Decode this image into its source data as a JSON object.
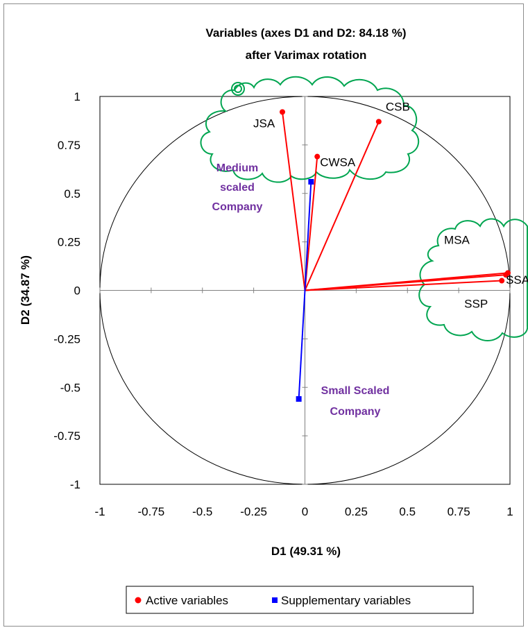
{
  "chart_data": {
    "type": "scatter",
    "title": "Variables (axes D1 and D2: 84.18 %)",
    "subtitle": "after Varimax rotation",
    "xlabel": "D1 (49.31 %)",
    "ylabel": "D2 (34.87 %)",
    "xlim": [
      -1,
      1
    ],
    "ylim": [
      -1,
      1
    ],
    "x_ticks": [
      "-1",
      "-0.75",
      "-0.5",
      "-0.25",
      "0",
      "0.25",
      "0.5",
      "0.75",
      "1"
    ],
    "y_ticks": [
      "1",
      "0.75",
      "0.5",
      "0.25",
      "0",
      "-0.25",
      "-0.5",
      "-0.75",
      "-1"
    ],
    "grid": false,
    "legend_position": "bottom",
    "series": [
      {
        "name": "Active variables",
        "color": "#ff0000",
        "marker": "circle",
        "points": [
          {
            "label": "JSA",
            "x": -0.11,
            "y": 0.92
          },
          {
            "label": "CWSA",
            "x": 0.06,
            "y": 0.69
          },
          {
            "label": "CSB",
            "x": 0.36,
            "y": 0.87
          },
          {
            "label": "MSA",
            "x": 0.99,
            "y": 0.09
          },
          {
            "label": "SSA",
            "x": 0.98,
            "y": 0.08
          },
          {
            "label": "SSP",
            "x": 0.96,
            "y": 0.05
          }
        ]
      },
      {
        "name": "Supplementary variables",
        "color": "#0000ff",
        "marker": "square",
        "points": [
          {
            "label": "",
            "x": 0.03,
            "y": 0.56
          },
          {
            "label": "",
            "x": -0.03,
            "y": -0.56
          }
        ]
      }
    ],
    "annotations": [
      {
        "lines": [
          "Medium",
          "scaled",
          "Company"
        ],
        "color": "#7030a0"
      },
      {
        "lines": [
          "Small Scaled",
          "Company"
        ],
        "color": "#7030a0"
      }
    ],
    "cloud_color": "#00a550"
  }
}
